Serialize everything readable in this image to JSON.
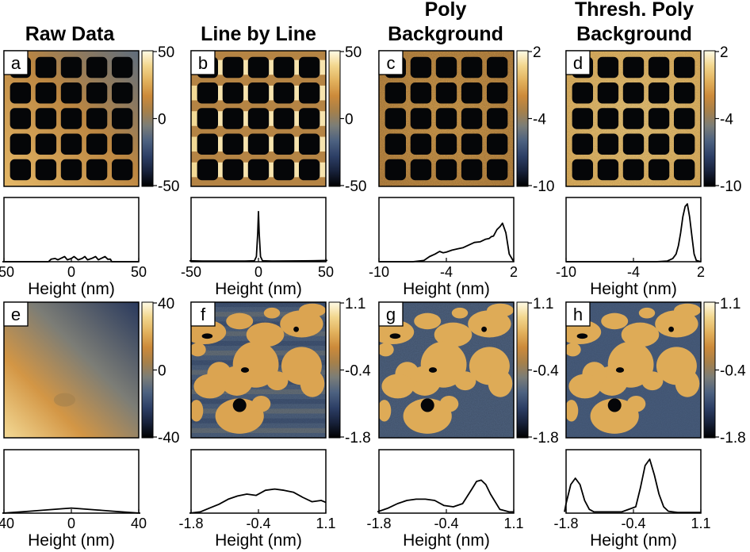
{
  "columns": [
    {
      "title_lines": [
        "Raw Data"
      ]
    },
    {
      "title_lines": [
        "Line by Line"
      ]
    },
    {
      "title_lines": [
        "Poly",
        "Background"
      ]
    },
    {
      "title_lines": [
        "Thresh. Poly",
        "Background"
      ]
    }
  ],
  "colors": {
    "colormap": [
      "#000000",
      "#17213a",
      "#2d3f66",
      "#4c6180",
      "#7a7d78",
      "#a6804a",
      "#cc8a3a",
      "#e2b15d",
      "#f2d68d",
      "#fffbe6"
    ],
    "frame": "#000000",
    "background": "#ffffff"
  },
  "chart_data": [
    {
      "type": "heatmap",
      "panel": "a",
      "colorbar_ticks": [
        "50",
        "0",
        "-50"
      ],
      "range": [
        -50,
        50
      ],
      "pattern": "5x5 grid of dark square pits on a diagonal gradient background"
    },
    {
      "type": "heatmap",
      "panel": "b",
      "colorbar_ticks": [
        "50",
        "0",
        "-50"
      ],
      "range": [
        -50,
        50
      ],
      "pattern": "5x5 grid of dark square pits with bright streaks between pits in each row"
    },
    {
      "type": "heatmap",
      "panel": "c",
      "colorbar_ticks": [
        "2",
        "-4",
        "-10"
      ],
      "range": [
        -10,
        2
      ],
      "pattern": "5x5 grid of dark square pits on a flat orange background"
    },
    {
      "type": "heatmap",
      "panel": "d",
      "colorbar_ticks": [
        "2",
        "-4",
        "-10"
      ],
      "range": [
        -10,
        2
      ],
      "pattern": "5x5 grid of dark square pits on a flat light background"
    },
    {
      "type": "line",
      "panel": "hist-a",
      "xlabel": "Height (nm)",
      "xticks": [
        "-50",
        "0",
        "50"
      ],
      "xlim": [
        -50,
        50
      ],
      "x": [
        -52,
        -17,
        -15,
        -12,
        -10,
        -8,
        -5,
        -3,
        0,
        2,
        5,
        8,
        10,
        12,
        15,
        18,
        20,
        22,
        25,
        27,
        29,
        30,
        50
      ],
      "y": [
        0,
        0,
        0.04,
        0.05,
        0.03,
        0.05,
        0.08,
        0.03,
        0.05,
        0.08,
        0.03,
        0.05,
        0.08,
        0.03,
        0.05,
        0.08,
        0.03,
        0.05,
        0.08,
        0.04,
        0.04,
        0,
        0
      ]
    },
    {
      "type": "line",
      "panel": "hist-b",
      "xlabel": "Height (nm)",
      "xticks": [
        "-50",
        "0",
        "50"
      ],
      "xlim": [
        -50,
        50
      ],
      "x": [
        -52,
        -40,
        -10,
        -3,
        -1.5,
        -0.5,
        0,
        0.5,
        1.5,
        3,
        10,
        40,
        52
      ],
      "y": [
        0.015,
        0.01,
        0.01,
        0.015,
        0.08,
        0.45,
        0.78,
        0.45,
        0.08,
        0.015,
        0.01,
        0.015,
        0.02
      ]
    },
    {
      "type": "line",
      "panel": "hist-c",
      "xlabel": "Height (nm)",
      "xticks": [
        "-10",
        "-4",
        "2"
      ],
      "xlim": [
        -10,
        2
      ],
      "x": [
        -10,
        -7,
        -6,
        -5.5,
        -5,
        -4.6,
        -4.3,
        -4,
        -3.5,
        -3,
        -2.5,
        -2,
        -1.5,
        -1,
        -0.5,
        -0.2,
        0,
        0.2,
        0.5,
        0.8,
        1,
        1.3,
        1.6,
        2
      ],
      "y": [
        0,
        0,
        0.02,
        0.08,
        0.12,
        0.16,
        0.14,
        0.15,
        0.18,
        0.2,
        0.22,
        0.26,
        0.3,
        0.31,
        0.35,
        0.36,
        0.39,
        0.4,
        0.5,
        0.55,
        0.6,
        0.45,
        0.12,
        0
      ]
    },
    {
      "type": "line",
      "panel": "hist-d",
      "xlabel": "Height (nm)",
      "xticks": [
        "-10",
        "-4",
        "2"
      ],
      "xlim": [
        -10,
        2
      ],
      "x": [
        -10,
        -2,
        -1,
        -0.5,
        -0.2,
        0,
        0.2,
        0.4,
        0.6,
        0.8,
        1,
        1.2,
        1.4,
        1.6,
        2
      ],
      "y": [
        0,
        0,
        0.01,
        0.05,
        0.12,
        0.25,
        0.45,
        0.7,
        0.86,
        0.9,
        0.7,
        0.4,
        0.12,
        0.02,
        0
      ]
    },
    {
      "type": "heatmap",
      "panel": "e",
      "colorbar_ticks": [
        "40",
        "0",
        "-40"
      ],
      "range": [
        -40,
        40
      ],
      "pattern": "smooth diagonal gradient from light (bottom-left) to dark (top-right)"
    },
    {
      "type": "heatmap",
      "panel": "f",
      "colorbar_ticks": [
        "1.1",
        "-0.4",
        "-1.8"
      ],
      "range": [
        -1.8,
        1.1
      ],
      "pattern": "bright rounded island domains on a striped dark blue background"
    },
    {
      "type": "heatmap",
      "panel": "g",
      "colorbar_ticks": [
        "1.1",
        "-0.4",
        "-1.8"
      ],
      "range": [
        -1.8,
        1.1
      ],
      "pattern": "bright rounded island domains on a dark blue background"
    },
    {
      "type": "heatmap",
      "panel": "h",
      "colorbar_ticks": [
        "1.1",
        "-0.4",
        "-1.8"
      ],
      "range": [
        -1.8,
        1.1
      ],
      "pattern": "bright rounded island domains on a uniform dark blue background"
    },
    {
      "type": "line",
      "panel": "hist-e",
      "xlabel": "Height (nm)",
      "xticks": [
        "-40",
        "0",
        "40"
      ],
      "xlim": [
        -40,
        40
      ],
      "x": [
        -42,
        -35,
        -25,
        -15,
        -5,
        0,
        5,
        15,
        25,
        35,
        42
      ],
      "y": [
        0,
        0.01,
        0.03,
        0.05,
        0.07,
        0.08,
        0.07,
        0.05,
        0.03,
        0.01,
        0
      ]
    },
    {
      "type": "line",
      "panel": "hist-f",
      "xlabel": "Height (nm)",
      "xticks": [
        "-1.8",
        "-0.4",
        "1.1"
      ],
      "xlim": [
        -1.8,
        1.1
      ],
      "x": [
        -1.85,
        -1.6,
        -1.4,
        -1.2,
        -1.0,
        -0.8,
        -0.6,
        -0.4,
        -0.3,
        -0.2,
        0,
        0.2,
        0.4,
        0.6,
        0.8,
        1.0,
        1.1
      ],
      "y": [
        0,
        0.02,
        0.08,
        0.14,
        0.22,
        0.27,
        0.3,
        0.28,
        0.32,
        0.36,
        0.38,
        0.36,
        0.33,
        0.25,
        0.18,
        0.2,
        0.17
      ]
    },
    {
      "type": "line",
      "panel": "hist-g",
      "xlabel": "Height (nm)",
      "xticks": [
        "-1.8",
        "-0.4",
        "1.1"
      ],
      "xlim": [
        -1.8,
        1.1
      ],
      "x": [
        -1.85,
        -1.6,
        -1.4,
        -1.2,
        -1.0,
        -0.8,
        -0.6,
        -0.4,
        -0.2,
        0,
        0.2,
        0.3,
        0.4,
        0.5,
        0.6,
        0.8,
        1.0,
        1.1
      ],
      "y": [
        0.02,
        0.08,
        0.15,
        0.2,
        0.22,
        0.22,
        0.2,
        0.12,
        0.1,
        0.15,
        0.38,
        0.5,
        0.52,
        0.45,
        0.3,
        0.06,
        0.02,
        0.02
      ]
    },
    {
      "type": "line",
      "panel": "hist-h",
      "xlabel": "Height (nm)",
      "xticks": [
        "-1.8",
        "-0.4",
        "1.1"
      ],
      "xlim": [
        -1.8,
        1.1
      ],
      "x": [
        -1.85,
        -1.8,
        -1.7,
        -1.6,
        -1.5,
        -1.4,
        -1.3,
        -1.2,
        -1.0,
        -0.6,
        -0.3,
        -0.2,
        -0.1,
        0,
        0.1,
        0.2,
        0.3,
        0.4,
        0.6,
        1.1
      ],
      "y": [
        0.02,
        0.15,
        0.45,
        0.55,
        0.45,
        0.2,
        0.06,
        0.02,
        0.02,
        0.02,
        0.1,
        0.4,
        0.75,
        0.85,
        0.6,
        0.3,
        0.1,
        0.03,
        0.01,
        0.01
      ]
    }
  ]
}
